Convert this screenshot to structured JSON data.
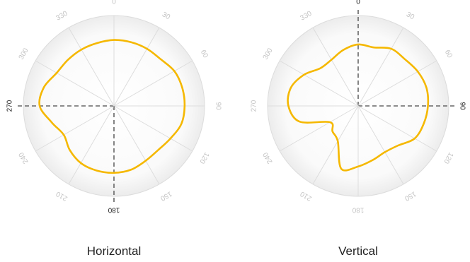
{
  "chart_data": [
    {
      "type": "polar-line",
      "title": "Horizontal",
      "theta_unit": "degrees",
      "theta_direction": "clockwise",
      "theta_zero": "top",
      "angle_ticks": [
        "0",
        "30",
        "60",
        "90",
        "120",
        "150",
        "180",
        "210",
        "240",
        "270",
        "300",
        "330"
      ],
      "highlighted_ticks": [
        "180",
        "270"
      ],
      "dashed_axes": [
        "180",
        "270"
      ],
      "radial_range": [
        0,
        1
      ],
      "line_color": "#F5B800",
      "series": [
        {
          "theta": [
            0,
            15,
            30,
            45,
            60,
            75,
            90,
            105,
            120,
            135,
            150,
            165,
            180,
            195,
            210,
            225,
            240,
            255,
            270,
            285,
            300,
            315,
            330,
            345
          ],
          "r": [
            0.73,
            0.73,
            0.73,
            0.73,
            0.77,
            0.78,
            0.78,
            0.77,
            0.72,
            0.69,
            0.7,
            0.73,
            0.74,
            0.74,
            0.73,
            0.69,
            0.64,
            0.71,
            0.82,
            0.8,
            0.73,
            0.72,
            0.72,
            0.72
          ]
        }
      ]
    },
    {
      "type": "polar-line",
      "title": "Vertical",
      "theta_unit": "degrees",
      "theta_direction": "clockwise",
      "theta_zero": "top",
      "angle_ticks": [
        "0",
        "30",
        "60",
        "90",
        "120",
        "150",
        "180",
        "210",
        "240",
        "270",
        "300",
        "330"
      ],
      "highlighted_ticks": [
        "0",
        "90"
      ],
      "dashed_axes": [
        "0",
        "90"
      ],
      "radial_range": [
        0,
        1
      ],
      "line_color": "#F5B800",
      "series": [
        {
          "theta": [
            0,
            15,
            30,
            45,
            60,
            75,
            90,
            105,
            120,
            135,
            150,
            165,
            180,
            195,
            210,
            225,
            240,
            255,
            270,
            285,
            300,
            315,
            330,
            345
          ],
          "r": [
            0.68,
            0.67,
            0.73,
            0.73,
            0.76,
            0.78,
            0.77,
            0.75,
            0.72,
            0.62,
            0.59,
            0.62,
            0.67,
            0.72,
            0.45,
            0.4,
            0.36,
            0.67,
            0.77,
            0.77,
            0.69,
            0.59,
            0.59,
            0.64
          ]
        }
      ]
    }
  ]
}
